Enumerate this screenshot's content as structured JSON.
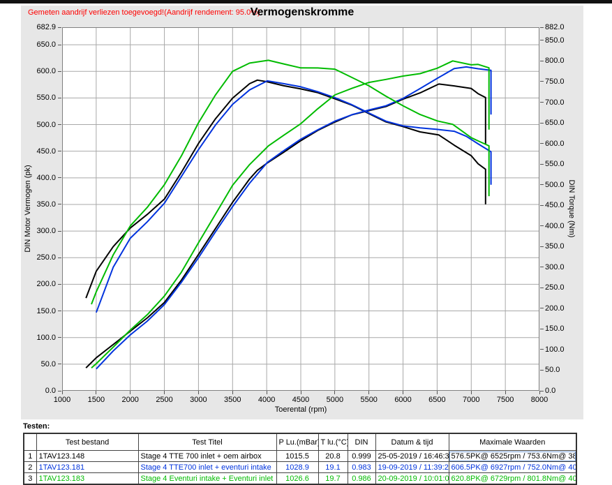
{
  "header": {
    "warning_text": "Gemeten aandrijf verliezen toegevoegd!(Aandrijf rendement: 95.0%)",
    "warning_color": "#ff0000",
    "title": "Vermogenskromme"
  },
  "chart_data": {
    "type": "line",
    "title": "Vermogenskromme",
    "xlabel": "Toerental (rpm)",
    "ylabel_left": "DIN Motor Vermogen (pk)",
    "ylabel_right": "DIN Torque (Nm)",
    "xlim": [
      1000,
      8000
    ],
    "ylim_left": [
      0,
      682.9
    ],
    "ylim_right": [
      0,
      882.0
    ],
    "grid": "on",
    "legend_position": "none (series identified by colored rows in table below)",
    "xticks": [
      1000,
      1500,
      2000,
      2500,
      3000,
      3500,
      4000,
      4500,
      5000,
      5500,
      6000,
      6500,
      7000,
      7500,
      8000
    ],
    "yticks_left": [
      0,
      50,
      100,
      150,
      200,
      250,
      300,
      350,
      400,
      450,
      500,
      550,
      600,
      650,
      682.9
    ],
    "yticks_right": [
      0,
      50,
      100,
      150,
      200,
      250,
      300,
      350,
      400,
      450,
      500,
      550,
      600,
      650,
      700,
      750,
      800,
      850,
      882.0
    ],
    "series": [
      {
        "name": "Stage 4 TTE 700 inlet + oem airbox",
        "color": "#000000",
        "peak_power": "576.5PK@ 6525rpm",
        "peak_torque": "753.6Nm@ 3863rpm",
        "rpm": [
          1350,
          1500,
          1750,
          2000,
          2250,
          2500,
          2750,
          3000,
          3250,
          3500,
          3750,
          3863,
          4000,
          4250,
          4500,
          4750,
          5000,
          5250,
          5500,
          5750,
          6000,
          6250,
          6525,
          6750,
          7000,
          7100,
          7210,
          7210
        ],
        "power_pk": [
          43,
          62,
          87,
          112,
          137,
          166,
          208,
          256,
          305,
          354,
          398,
          414,
          427,
          448,
          468,
          488,
          506,
          520,
          526,
          532,
          547,
          561,
          576.5,
          572,
          566,
          560,
          549,
          462
        ],
        "torque_nm": [
          225,
          290,
          350,
          395,
          428,
          465,
          530,
          600,
          660,
          710,
          745,
          753.6,
          750,
          740,
          730,
          722,
          710,
          695,
          672,
          650,
          640,
          630,
          621,
          595,
          568,
          553,
          535,
          450
        ]
      },
      {
        "name": "Stage 4 TTE700 inlet + eventuri intake",
        "color": "#0033dd",
        "peak_power": "606.5PK@ 6927rpm",
        "peak_torque": "752.0Nm@ 4010rpm",
        "rpm": [
          1500,
          1750,
          2000,
          2250,
          2500,
          2750,
          3000,
          3250,
          3500,
          3750,
          4010,
          4250,
          4500,
          4750,
          5000,
          5250,
          5500,
          5750,
          6000,
          6250,
          6500,
          6750,
          6927,
          7100,
          7290,
          7290
        ],
        "power_pk": [
          41,
          75,
          105,
          131,
          162,
          204,
          250,
          299,
          346,
          390,
          429,
          451,
          473,
          492,
          507,
          517,
          526,
          536,
          551,
          568,
          585,
          604,
          606.5,
          604,
          602,
          519
        ],
        "torque_nm": [
          190,
          300,
          370,
          410,
          455,
          520,
          585,
          645,
          695,
          730,
          752,
          745,
          738,
          728,
          712,
          692,
          672,
          655,
          645,
          638,
          632,
          628,
          615,
          598,
          580,
          500
        ]
      },
      {
        "name": "Stage 4 Eventuri intake + Eventuri inlet",
        "color": "#00bb00",
        "peak_power": "620.8PK@ 6729rpm",
        "peak_torque": "801.8Nm@ 4025rpm",
        "rpm": [
          1430,
          1500,
          1750,
          2000,
          2250,
          2500,
          2750,
          3000,
          3250,
          3500,
          3750,
          4025,
          4250,
          4500,
          4750,
          5000,
          5250,
          5500,
          5750,
          6000,
          6250,
          6500,
          6729,
          7000,
          7100,
          7260,
          7260
        ],
        "power_pk": [
          43,
          51,
          82,
          114,
          143,
          178,
          223,
          278,
          332,
          386,
          425,
          460,
          480,
          503,
          529,
          554,
          568,
          581,
          586,
          590,
          594,
          606,
          620.8,
          613,
          612,
          605,
          489
        ],
        "torque_nm": [
          210,
          240,
          330,
          400,
          445,
          500,
          570,
          650,
          718,
          775,
          795,
          801.8,
          793,
          785,
          782,
          778,
          760,
          742,
          716,
          690,
          668,
          655,
          648,
          615,
          605,
          592,
          470
        ]
      }
    ]
  },
  "table": {
    "label": "Testen:",
    "columns": [
      "",
      "Test bestand",
      "Test Titel",
      "P Lu.(mBar)",
      "T lu.(°C)",
      "DIN",
      "Datum & tijd",
      "Maximale Waarden"
    ],
    "rows": [
      {
        "index": "1",
        "color": "#000000",
        "test_bestand": "1TAV123.148",
        "test_titel": "Stage 4 TTE 700  inlet + oem airbox",
        "p_lu": "1015.5",
        "t_lu": "20.8",
        "din": "0.999",
        "datum_tijd": "25-05-2019 / 16:46:36",
        "maximale_waarden": "576.5PK@ 6525rpm / 753.6Nm@ 3863rpm"
      },
      {
        "index": "2",
        "color": "#0033dd",
        "test_bestand": "1TAV123.181",
        "test_titel": "Stage 4 TTE700 inlet + eventuri intake",
        "p_lu": "1028.9",
        "t_lu": "19.1",
        "din": "0.983",
        "datum_tijd": "19-09-2019 / 11:39:20",
        "maximale_waarden": "606.5PK@ 6927rpm / 752.0Nm@ 4010rpm"
      },
      {
        "index": "3",
        "color": "#00bb00",
        "test_bestand": "1TAV123.183",
        "test_titel": "Stage 4 Eventuri intake + Eventuri inlet",
        "p_lu": "1026.6",
        "t_lu": "19.7",
        "din": "0.986",
        "datum_tijd": "20-09-2019 / 10:01:08",
        "maximale_waarden": "620.8PK@ 6729rpm / 801.8Nm@ 4025rpm"
      }
    ]
  }
}
